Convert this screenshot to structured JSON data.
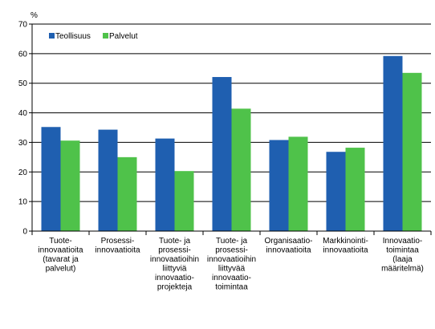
{
  "chart_data": {
    "type": "bar",
    "unit_label": "%",
    "ylim": [
      0,
      70
    ],
    "y_ticks": [
      0,
      10,
      20,
      30,
      40,
      50,
      60,
      70
    ],
    "grid": true,
    "legend_position": "top-left",
    "categories": [
      [
        "Tuote-",
        "innovaatioita",
        "(tavarat ja",
        "palvelut)"
      ],
      [
        "Prosessi-",
        "innovaatioita"
      ],
      [
        "Tuote- ja",
        "prosessi-",
        "innovaatioihin",
        "liittyviä",
        "innovaatio-",
        "projekteja"
      ],
      [
        "Tuote- ja",
        "prosessi-",
        "innovaatioihin",
        "liittyvää",
        "innovaatio-",
        "toimintaa"
      ],
      [
        "Organisaatio-",
        "innovaatioita"
      ],
      [
        "Markkinointi-",
        "innovaatioita"
      ],
      [
        "Innovaatio-",
        "toimintaa",
        "(laaja",
        "määritelmä)"
      ]
    ],
    "series": [
      {
        "name": "Teollisuus",
        "color": "#1f5fb0",
        "values": [
          35.2,
          34.3,
          31.3,
          52.1,
          30.8,
          26.8,
          59.2
        ]
      },
      {
        "name": "Palvelut",
        "color": "#4fc24a",
        "values": [
          30.6,
          25.0,
          20.3,
          41.4,
          31.9,
          28.2,
          53.5
        ]
      }
    ]
  }
}
